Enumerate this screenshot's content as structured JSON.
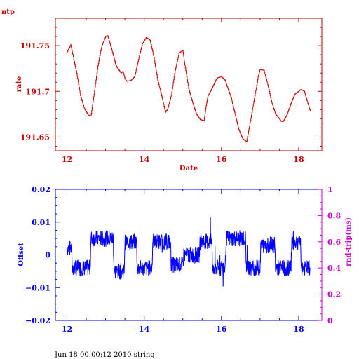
{
  "footer": "Jun 18 00:00:12 2010 string",
  "chart_data": [
    {
      "type": "line",
      "title": "ntp",
      "xlabel": "Date",
      "ylabel": "rate",
      "color": "#cc0000",
      "xlim": [
        11.7,
        18.6
      ],
      "ylim": [
        191.635,
        191.78
      ],
      "xticks": [
        12,
        14,
        16,
        18
      ],
      "xtick_labels": [
        "12",
        "14",
        "16",
        "18"
      ],
      "yticks": [
        191.65,
        191.7,
        191.75
      ],
      "ytick_labels": [
        "191.65",
        "191.7",
        "191.75"
      ],
      "series": [
        {
          "x": [
            12.0,
            12.1,
            12.15,
            12.25,
            12.35,
            12.45,
            12.55,
            12.62,
            12.7,
            12.8,
            12.9,
            13.0,
            13.05,
            13.15,
            13.25,
            13.3,
            13.4,
            13.45,
            13.5,
            13.55,
            13.65,
            13.75,
            13.85,
            13.95,
            14.05,
            14.15,
            14.25,
            14.35,
            14.45,
            14.55,
            14.6,
            14.7,
            14.8,
            14.9,
            15.0,
            15.05,
            15.15,
            15.25,
            15.35,
            15.45,
            15.55,
            15.6,
            15.65,
            15.75,
            15.85,
            15.9,
            16.0,
            16.1,
            16.15,
            16.25,
            16.35,
            16.45,
            16.55,
            16.65,
            16.75,
            16.85,
            16.95,
            17.0,
            17.1,
            17.2,
            17.3,
            17.4,
            17.5,
            17.55,
            17.6,
            17.7,
            17.8,
            17.9,
            18.0,
            18.05,
            18.15,
            18.2,
            18.3
          ],
          "y": [
            191.743,
            191.751,
            191.74,
            191.72,
            191.695,
            191.681,
            191.674,
            191.673,
            191.697,
            191.728,
            191.75,
            191.76,
            191.761,
            191.747,
            191.731,
            191.726,
            191.72,
            191.722,
            191.714,
            191.711,
            191.712,
            191.716,
            191.735,
            191.752,
            191.759,
            191.756,
            191.737,
            191.712,
            191.695,
            191.677,
            191.68,
            191.696,
            191.723,
            191.742,
            191.745,
            191.729,
            191.703,
            191.688,
            191.675,
            191.669,
            191.668,
            191.683,
            191.695,
            191.703,
            191.712,
            191.715,
            191.716,
            191.712,
            191.705,
            191.693,
            191.675,
            191.658,
            191.648,
            191.645,
            191.668,
            191.692,
            191.716,
            191.724,
            191.723,
            191.707,
            191.688,
            191.675,
            191.67,
            191.667,
            191.667,
            191.675,
            191.687,
            191.697,
            191.7,
            191.702,
            191.7,
            191.692,
            191.678
          ]
        }
      ]
    },
    {
      "type": "line",
      "ylabel": "Offset",
      "y2label": "rnd-trip(ms)",
      "color": "#0000ff",
      "y2color": "#cc00cc",
      "xlim": [
        11.7,
        18.6
      ],
      "ylim": [
        -0.02,
        0.02
      ],
      "y2lim": [
        0,
        1
      ],
      "xticks": [
        12,
        14,
        16,
        18
      ],
      "xtick_labels": [
        "12",
        "14",
        "16",
        "18"
      ],
      "yticks": [
        -0.02,
        -0.01,
        0,
        0.01,
        0.02
      ],
      "ytick_labels": [
        "−0.02",
        "−0.01",
        "0",
        "0.01",
        "0.02"
      ],
      "y2ticks": [
        0,
        0.2,
        0.4,
        0.6,
        0.8,
        1
      ],
      "y2tick_labels": [
        "0",
        "0.2",
        "0.4",
        "0.6",
        "0.8",
        "1"
      ],
      "series": [
        {
          "x": [
            12.0,
            12.12,
            12.13,
            12.6,
            12.62,
            13.2,
            13.22,
            13.48,
            13.5,
            13.8,
            13.82,
            14.2,
            14.22,
            14.68,
            14.7,
            15.0,
            15.02,
            15.42,
            15.45,
            15.75,
            15.77,
            16.1,
            16.12,
            16.62,
            16.65,
            17.0,
            17.02,
            17.38,
            17.4,
            17.8,
            17.82,
            18.05,
            18.07,
            18.3
          ],
          "y": [
            0.002,
            0.002,
            -0.004,
            -0.004,
            0.005,
            0.005,
            -0.005,
            -0.005,
            0.004,
            0.004,
            -0.004,
            -0.004,
            0.004,
            0.004,
            -0.003,
            -0.003,
            0.0,
            0.0,
            0.004,
            0.004,
            -0.004,
            -0.004,
            0.005,
            0.005,
            -0.004,
            -0.004,
            0.003,
            0.003,
            -0.004,
            -0.004,
            0.004,
            0.004,
            -0.004,
            -0.004
          ],
          "noise": 0.0025
        }
      ]
    }
  ]
}
